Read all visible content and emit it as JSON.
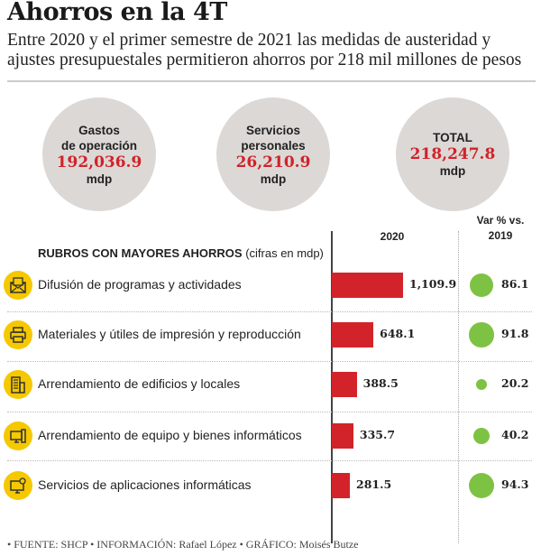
{
  "title": "Ahorros en la 4T",
  "subtitle": "Entre 2020 y el primer semestre de 2021 las medidas de austeridad y ajustes presupuestales permitieron ahorros por 218 mil millones de pesos",
  "summary": [
    {
      "label1": "Gastos",
      "label2": "de operación",
      "value": "192,036.9",
      "unit": "mdp"
    },
    {
      "label1": "Servicios",
      "label2": "personales",
      "value": "26,210.9",
      "unit": "mdp"
    },
    {
      "label1": "",
      "label2": "TOTAL",
      "value": "218,247.8",
      "unit": "mdp"
    }
  ],
  "chart_data": {
    "type": "bar",
    "title": "RUBROS CON MAYORES AHORROS",
    "title_note": "(cifras en mdp)",
    "col_2020": "2020",
    "col_var": "Var % vs.",
    "col_var2": "2019",
    "categories": [
      "Difusión de programas y actividades",
      "Materiales y útiles de impresión y reproducción",
      "Arrendamiento de edificios y locales",
      "Arrendamiento de equipo y bienes informáticos",
      "Servicios de aplicaciones informáticas"
    ],
    "icons": [
      "envelope-icon",
      "printer-icon",
      "building-icon",
      "computer-icon",
      "app-settings-icon"
    ],
    "values": [
      1109.9,
      648.1,
      388.5,
      335.7,
      281.5
    ],
    "value_labels": [
      "1,109.9",
      "648.1",
      "388.5",
      "335.7",
      "281.5"
    ],
    "var_pct": [
      86.1,
      91.8,
      20.2,
      40.2,
      94.3
    ],
    "var_labels": [
      "86.1",
      "91.8",
      "20.2",
      "40.2",
      "94.3"
    ],
    "colors": {
      "bar": "#d2232a",
      "dot": "#7ec243",
      "icon_bg": "#f5c800"
    }
  },
  "footer": "• FUENTE: SHCP • INFORMACIÓN: Rafael López • GRÁFICO: Moisés Butze"
}
